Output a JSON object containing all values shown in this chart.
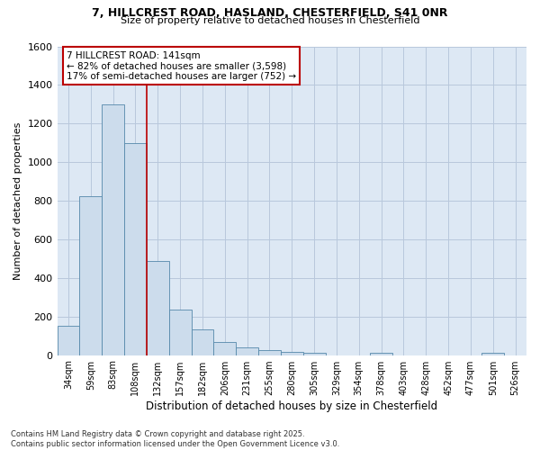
{
  "title1": "7, HILLCREST ROAD, HASLAND, CHESTERFIELD, S41 0NR",
  "title2": "Size of property relative to detached houses in Chesterfield",
  "xlabel": "Distribution of detached houses by size in Chesterfield",
  "ylabel": "Number of detached properties",
  "categories": [
    "34sqm",
    "59sqm",
    "83sqm",
    "108sqm",
    "132sqm",
    "157sqm",
    "182sqm",
    "206sqm",
    "231sqm",
    "255sqm",
    "280sqm",
    "305sqm",
    "329sqm",
    "354sqm",
    "378sqm",
    "403sqm",
    "428sqm",
    "452sqm",
    "477sqm",
    "501sqm",
    "526sqm"
  ],
  "values": [
    150,
    825,
    1300,
    1100,
    490,
    235,
    135,
    70,
    42,
    28,
    18,
    10,
    0,
    0,
    12,
    0,
    0,
    0,
    0,
    10,
    0
  ],
  "bar_color": "#ccdcec",
  "bar_edge_color": "#5588aa",
  "annotation_line1": "7 HILLCREST ROAD: 141sqm",
  "annotation_line2": "← 82% of detached houses are smaller (3,598)",
  "annotation_line3": "17% of semi-detached houses are larger (752) →",
  "vline_position": 3.5,
  "vline_color": "#bb0000",
  "annotation_box_edge": "#bb0000",
  "ylim": [
    0,
    1600
  ],
  "yticks": [
    0,
    200,
    400,
    600,
    800,
    1000,
    1200,
    1400,
    1600
  ],
  "grid_color": "#b8c8dc",
  "footer1": "Contains HM Land Registry data © Crown copyright and database right 2025.",
  "footer2": "Contains public sector information licensed under the Open Government Licence v3.0.",
  "bg_color": "#dde8f4",
  "title1_fontsize": 9,
  "title2_fontsize": 8
}
